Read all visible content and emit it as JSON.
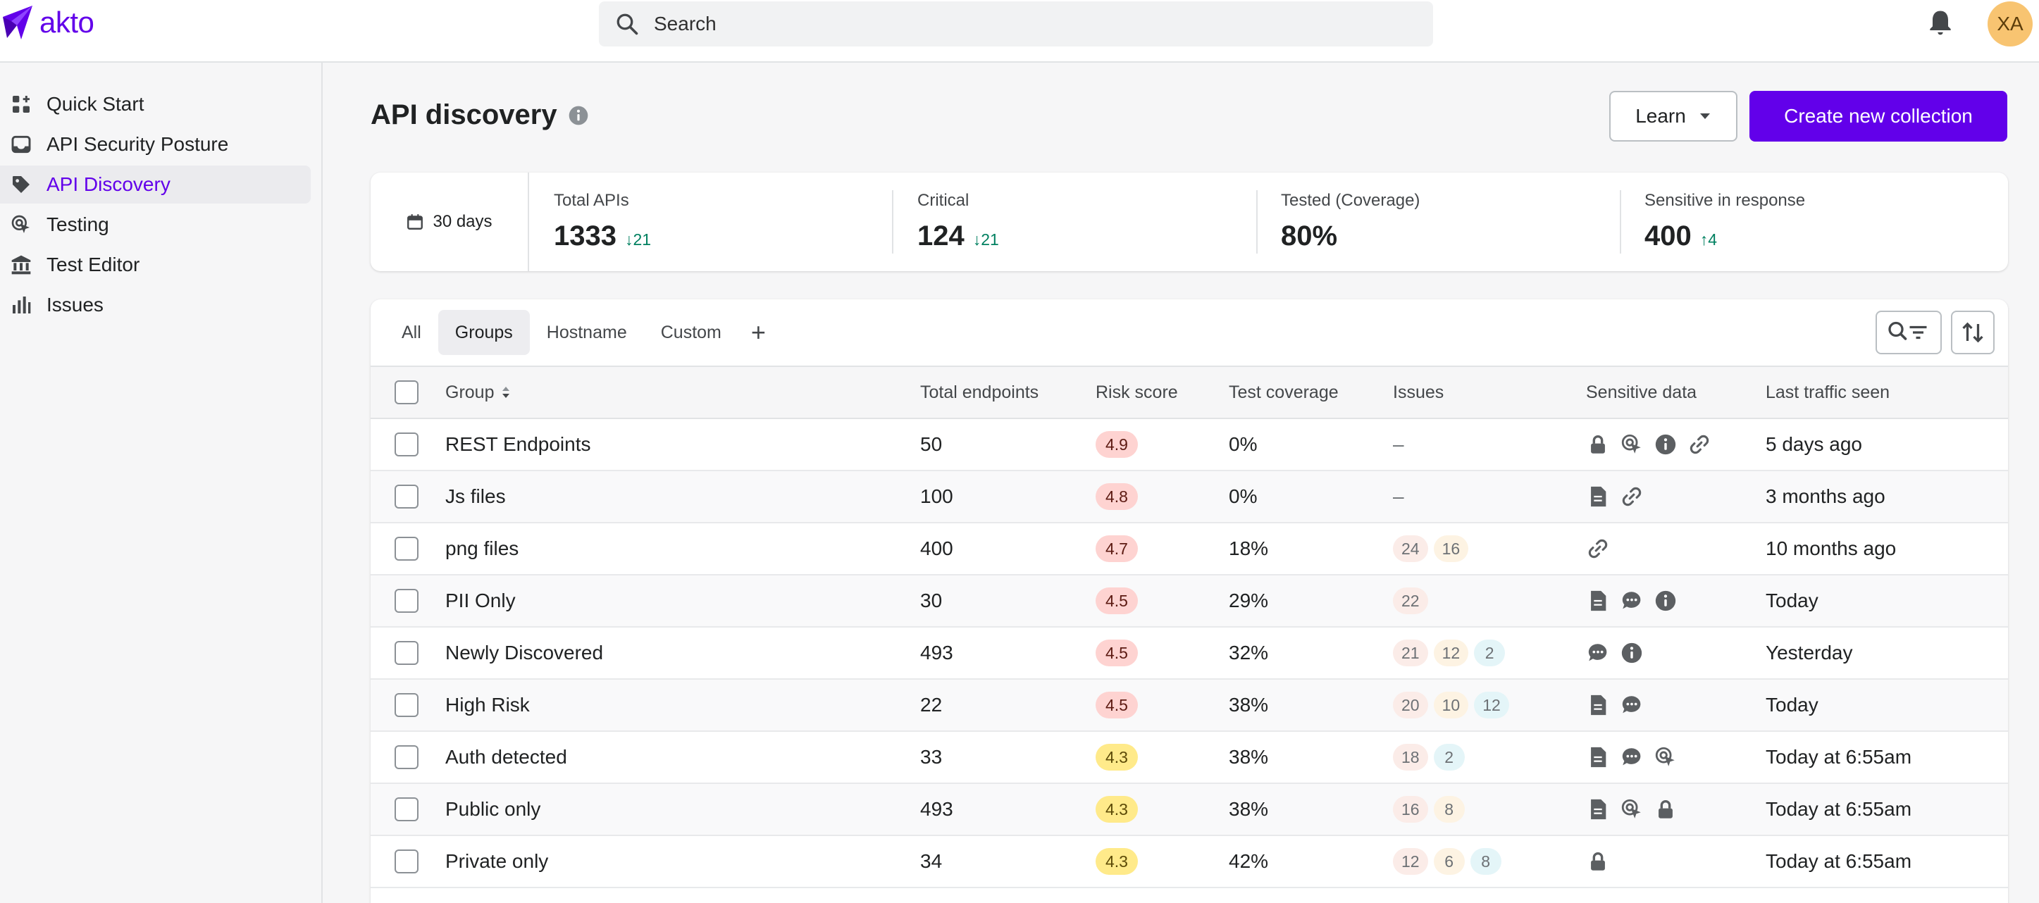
{
  "app": {
    "logo_text": "akto"
  },
  "topbar": {
    "search_placeholder": "Search",
    "avatar_initials": "XA"
  },
  "sidebar": {
    "items": [
      {
        "label": "Quick Start",
        "icon": "grid-plus-icon"
      },
      {
        "label": "API Security Posture",
        "icon": "inbox-icon"
      },
      {
        "label": "API Discovery",
        "icon": "tag-icon",
        "active": true
      },
      {
        "label": "Testing",
        "icon": "cursor-target-icon"
      },
      {
        "label": "Test Editor",
        "icon": "bank-icon"
      },
      {
        "label": "Issues",
        "icon": "bar-chart-icon"
      }
    ]
  },
  "header": {
    "title": "API discovery",
    "learn_label": "Learn",
    "create_label": "Create new collection"
  },
  "stats": {
    "date_range": "30 days",
    "items": [
      {
        "label": "Total APIs",
        "value": "1333",
        "delta": "21",
        "direction": "down"
      },
      {
        "label": "Critical",
        "value": "124",
        "delta": "21",
        "direction": "down"
      },
      {
        "label": "Tested (Coverage)",
        "value": "80%",
        "delta": "",
        "direction": ""
      },
      {
        "label": "Sensitive in response",
        "value": "400",
        "delta": "4",
        "direction": "up"
      }
    ]
  },
  "tabs": [
    {
      "label": "All",
      "active": false
    },
    {
      "label": "Groups",
      "active": true
    },
    {
      "label": "Hostname",
      "active": false
    },
    {
      "label": "Custom",
      "active": false
    }
  ],
  "table": {
    "columns": {
      "group": "Group",
      "total_endpoints": "Total endpoints",
      "risk_score": "Risk score",
      "test_coverage": "Test coverage",
      "issues": "Issues",
      "sensitive_data": "Sensitive data",
      "last_traffic_seen": "Last traffic seen"
    },
    "rows": [
      {
        "group": "REST Endpoints",
        "endpoints": "50",
        "risk": "4.9",
        "risk_level": "high",
        "coverage": "0%",
        "issues": [],
        "sensitive": [
          "lock-icon",
          "cursor-target-icon",
          "info-icon",
          "link-icon"
        ],
        "last_seen": "5 days ago"
      },
      {
        "group": "Js files",
        "endpoints": "100",
        "risk": "4.8",
        "risk_level": "high",
        "coverage": "0%",
        "issues": [],
        "sensitive": [
          "document-icon",
          "link-icon"
        ],
        "last_seen": "3 months ago"
      },
      {
        "group": "png files",
        "endpoints": "400",
        "risk": "4.7",
        "risk_level": "high",
        "coverage": "18%",
        "issues": [
          {
            "v": "24",
            "s": "c"
          },
          {
            "v": "16",
            "s": "h"
          }
        ],
        "sensitive": [
          "link-icon"
        ],
        "last_seen": "10 months ago"
      },
      {
        "group": "PII Only",
        "endpoints": "30",
        "risk": "4.5",
        "risk_level": "high",
        "coverage": "29%",
        "issues": [
          {
            "v": "22",
            "s": "c"
          }
        ],
        "sensitive": [
          "document-icon",
          "chat-icon",
          "info-icon"
        ],
        "last_seen": "Today"
      },
      {
        "group": "Newly Discovered",
        "endpoints": "493",
        "risk": "4.5",
        "risk_level": "high",
        "coverage": "32%",
        "issues": [
          {
            "v": "21",
            "s": "c"
          },
          {
            "v": "12",
            "s": "h"
          },
          {
            "v": "2",
            "s": "m"
          }
        ],
        "sensitive": [
          "chat-icon",
          "info-icon"
        ],
        "last_seen": "Yesterday"
      },
      {
        "group": "High Risk",
        "endpoints": "22",
        "risk": "4.5",
        "risk_level": "high",
        "coverage": "38%",
        "issues": [
          {
            "v": "20",
            "s": "c"
          },
          {
            "v": "10",
            "s": "h"
          },
          {
            "v": "12",
            "s": "m"
          }
        ],
        "sensitive": [
          "document-icon",
          "chat-icon"
        ],
        "last_seen": "Today"
      },
      {
        "group": "Auth detected",
        "endpoints": "33",
        "risk": "4.3",
        "risk_level": "med",
        "coverage": "38%",
        "issues": [
          {
            "v": "18",
            "s": "c"
          },
          {
            "v": "2",
            "s": "m"
          }
        ],
        "sensitive": [
          "document-icon",
          "chat-icon",
          "cursor-target-icon"
        ],
        "last_seen": "Today at 6:55am"
      },
      {
        "group": "Public only",
        "endpoints": "493",
        "risk": "4.3",
        "risk_level": "med",
        "coverage": "38%",
        "issues": [
          {
            "v": "16",
            "s": "c"
          },
          {
            "v": "8",
            "s": "h"
          }
        ],
        "sensitive": [
          "document-icon",
          "cursor-target-icon",
          "lock-icon"
        ],
        "last_seen": "Today at 6:55am"
      },
      {
        "group": "Private only",
        "endpoints": "34",
        "risk": "4.3",
        "risk_level": "med",
        "coverage": "42%",
        "issues": [
          {
            "v": "12",
            "s": "c"
          },
          {
            "v": "6",
            "s": "h"
          },
          {
            "v": "8",
            "s": "m"
          }
        ],
        "sensitive": [
          "lock-icon"
        ],
        "last_seen": "Today at 6:55am"
      }
    ]
  },
  "empty_issues": "–",
  "colors": {
    "accent": "#6200ea",
    "positive": "#008060"
  }
}
